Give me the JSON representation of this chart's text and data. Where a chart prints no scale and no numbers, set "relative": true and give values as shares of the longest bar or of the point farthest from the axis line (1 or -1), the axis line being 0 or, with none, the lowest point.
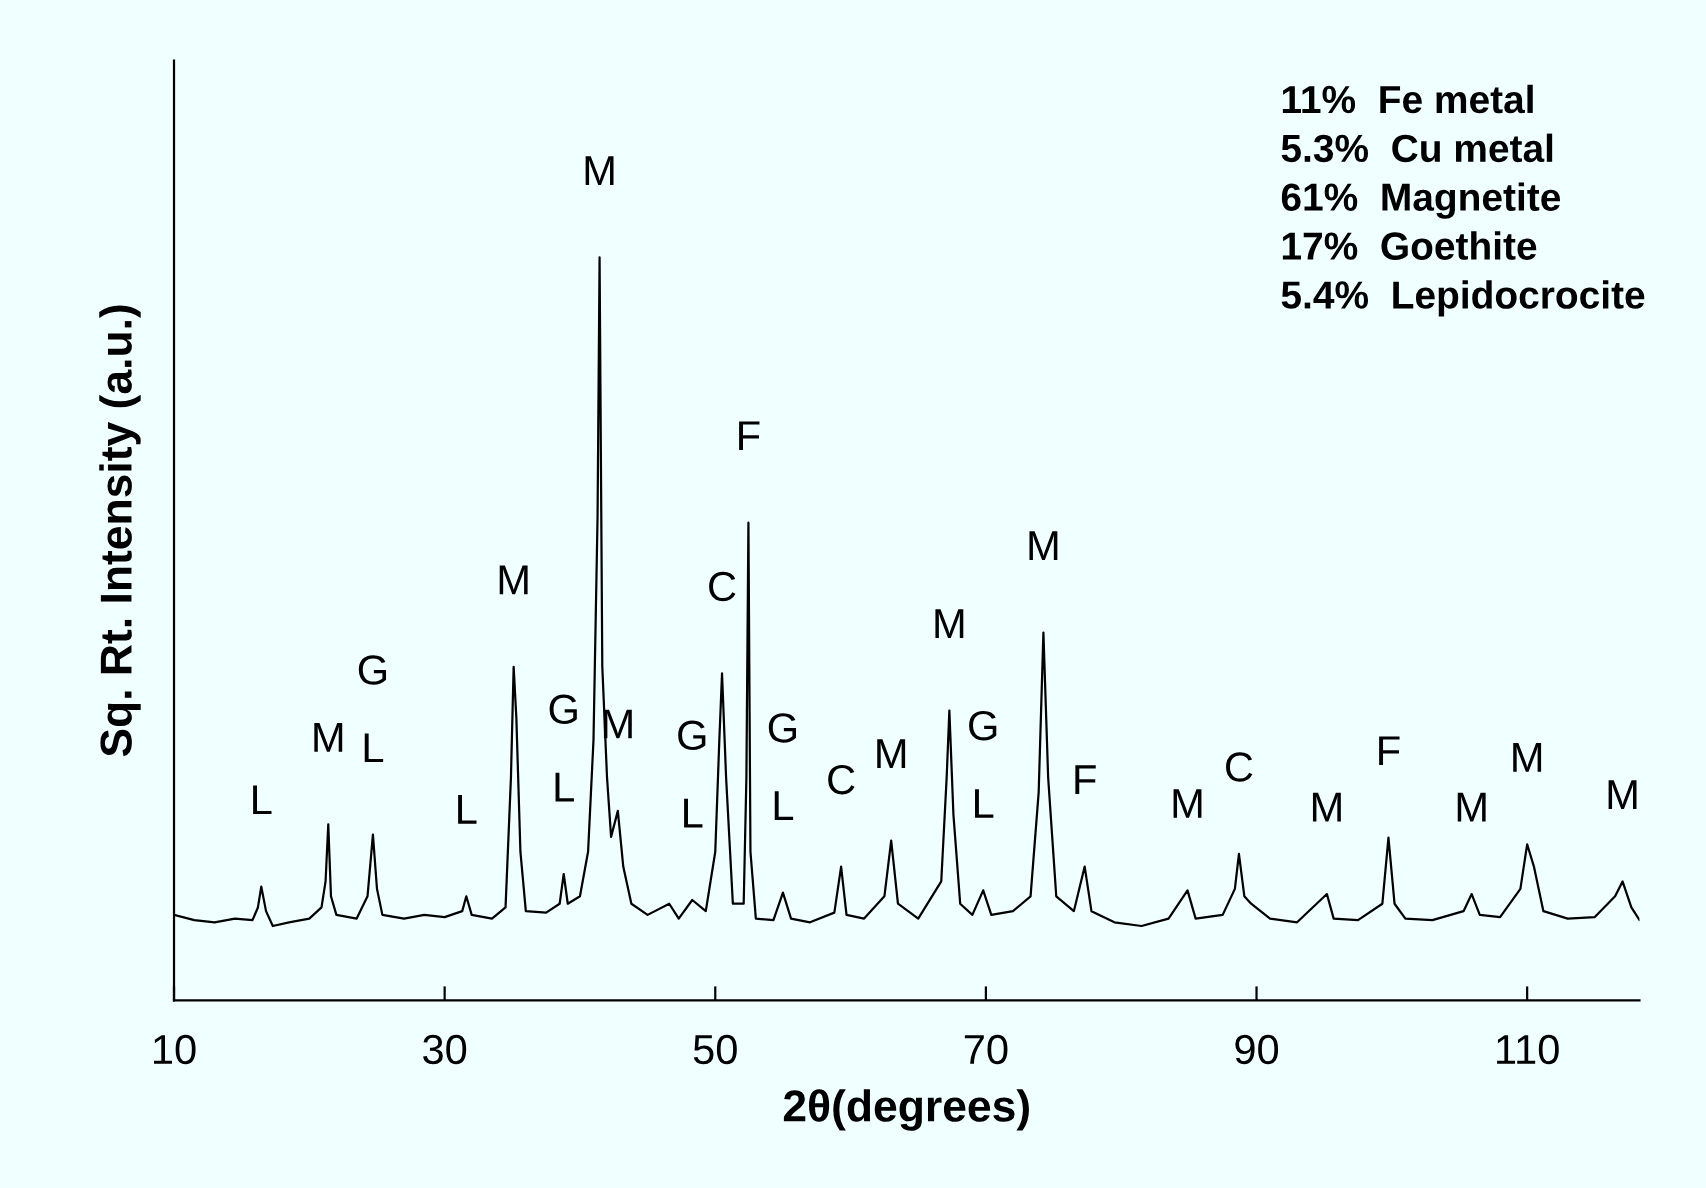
{
  "chart_data": {
    "type": "line",
    "relative": true,
    "xlabel": "2θ(degrees)",
    "ylabel": "Sq. Rt. Intensity (a.u.)",
    "xlim": [
      10,
      118.3
    ],
    "xticks": [
      10,
      30,
      50,
      70,
      90,
      110
    ],
    "grid": false,
    "legend": false,
    "marker": "none",
    "line_style": "solid",
    "series": [
      {
        "color": "#000000",
        "x": [
          10.0,
          11.5,
          13.0,
          14.5,
          15.8,
          16.2,
          16.45,
          16.8,
          17.3,
          18.5,
          20.0,
          20.9,
          21.2,
          21.4,
          21.6,
          22.0,
          23.5,
          24.3,
          24.7,
          25.0,
          25.4,
          27.0,
          28.5,
          30.0,
          31.3,
          31.6,
          32.0,
          33.5,
          34.5,
          34.9,
          35.1,
          35.3,
          35.6,
          36.0,
          37.5,
          38.5,
          38.8,
          39.1,
          40.0,
          40.6,
          41.0,
          41.3,
          41.45,
          41.65,
          42.0,
          42.3,
          42.8,
          43.2,
          43.8,
          45.0,
          46.6,
          47.3,
          48.3,
          49.3,
          50.0,
          50.3,
          50.5,
          50.8,
          51.3,
          52.1,
          52.3,
          52.45,
          52.6,
          53.0,
          54.3,
          55.0,
          55.6,
          57.0,
          58.8,
          59.3,
          59.7,
          61.0,
          62.5,
          63.0,
          63.5,
          65.0,
          66.7,
          67.1,
          67.3,
          67.6,
          68.1,
          69.0,
          69.8,
          70.4,
          72.0,
          73.3,
          73.9,
          74.25,
          74.6,
          75.2,
          76.5,
          77.3,
          77.8,
          79.5,
          81.5,
          83.5,
          84.9,
          85.5,
          87.5,
          88.4,
          88.7,
          89.1,
          89.6,
          91.0,
          93.0,
          95.2,
          95.7,
          97.5,
          99.3,
          99.75,
          100.2,
          101.0,
          103.0,
          105.3,
          105.9,
          106.5,
          108.0,
          109.5,
          110.0,
          110.5,
          111.2,
          113.0,
          115.0,
          116.5,
          117.05,
          117.7,
          118.3
        ],
        "values": [
          0.115,
          0.108,
          0.105,
          0.11,
          0.108,
          0.125,
          0.153,
          0.12,
          0.1,
          0.105,
          0.11,
          0.125,
          0.16,
          0.237,
          0.14,
          0.115,
          0.11,
          0.14,
          0.223,
          0.15,
          0.115,
          0.11,
          0.115,
          0.112,
          0.12,
          0.14,
          0.115,
          0.11,
          0.125,
          0.3,
          0.449,
          0.38,
          0.2,
          0.12,
          0.118,
          0.13,
          0.17,
          0.13,
          0.14,
          0.2,
          0.35,
          0.65,
          1.0,
          0.45,
          0.3,
          0.22,
          0.255,
          0.18,
          0.13,
          0.115,
          0.13,
          0.11,
          0.135,
          0.12,
          0.2,
          0.35,
          0.44,
          0.3,
          0.13,
          0.13,
          0.3,
          0.643,
          0.2,
          0.11,
          0.108,
          0.145,
          0.11,
          0.105,
          0.118,
          0.18,
          0.115,
          0.11,
          0.14,
          0.215,
          0.13,
          0.11,
          0.16,
          0.3,
          0.39,
          0.25,
          0.13,
          0.115,
          0.148,
          0.115,
          0.12,
          0.14,
          0.28,
          0.495,
          0.3,
          0.14,
          0.12,
          0.18,
          0.12,
          0.105,
          0.1,
          0.11,
          0.148,
          0.11,
          0.115,
          0.15,
          0.197,
          0.14,
          0.13,
          0.11,
          0.105,
          0.143,
          0.11,
          0.108,
          0.13,
          0.219,
          0.13,
          0.11,
          0.108,
          0.12,
          0.143,
          0.115,
          0.112,
          0.15,
          0.21,
          0.18,
          0.12,
          0.11,
          0.112,
          0.14,
          0.16,
          0.125,
          0.108
        ]
      }
    ],
    "annotations": [
      {
        "text": "L",
        "x": 16.45,
        "y": 0.153
      },
      {
        "text": "M",
        "x": 21.4,
        "y": 0.237
      },
      "G",
      {
        "text": "L",
        "x": 24.7,
        "y": 0.223
      },
      {
        "text": "L",
        "x": 31.6,
        "y": 0.14
      },
      {
        "text": "M",
        "x": 35.1,
        "y": 0.449
      },
      "G",
      {
        "text": "L",
        "x": 38.8,
        "y": 0.17
      },
      {
        "text": "M",
        "x": 41.45,
        "y": 1.0
      },
      {
        "text": "M",
        "x": 42.8,
        "y": 0.255
      },
      "G",
      {
        "text": "L",
        "x": 48.3,
        "y": 0.135
      },
      {
        "text": "C",
        "x": 50.5,
        "y": 0.44
      },
      {
        "text": "F",
        "x": 52.45,
        "y": 0.643
      },
      "G",
      {
        "text": "L",
        "x": 55.0,
        "y": 0.145
      },
      {
        "text": "C",
        "x": 59.3,
        "y": 0.18
      },
      {
        "text": "M",
        "x": 63.0,
        "y": 0.215
      },
      {
        "text": "M",
        "x": 67.3,
        "y": 0.39
      },
      "G",
      {
        "text": "L",
        "x": 69.8,
        "y": 0.148
      },
      {
        "text": "M",
        "x": 74.25,
        "y": 0.495
      },
      {
        "text": "F",
        "x": 77.3,
        "y": 0.18
      },
      {
        "text": "M",
        "x": 84.9,
        "y": 0.148
      },
      {
        "text": "C",
        "x": 88.7,
        "y": 0.197
      },
      {
        "text": "M",
        "x": 95.2,
        "y": 0.143
      },
      {
        "text": "F",
        "x": 99.75,
        "y": 0.219
      },
      {
        "text": "M",
        "x": 105.9,
        "y": 0.143
      },
      {
        "text": "M",
        "x": 110.0,
        "y": 0.21
      },
      {
        "text": "M",
        "x": 117.05,
        "y": 0.16
      },
      "11%  Fe metal",
      "5.3%  Cu metal",
      "61%  Magnetite",
      "17%  Goethite",
      "5.4%  Lepidocrocite"
    ]
  }
}
